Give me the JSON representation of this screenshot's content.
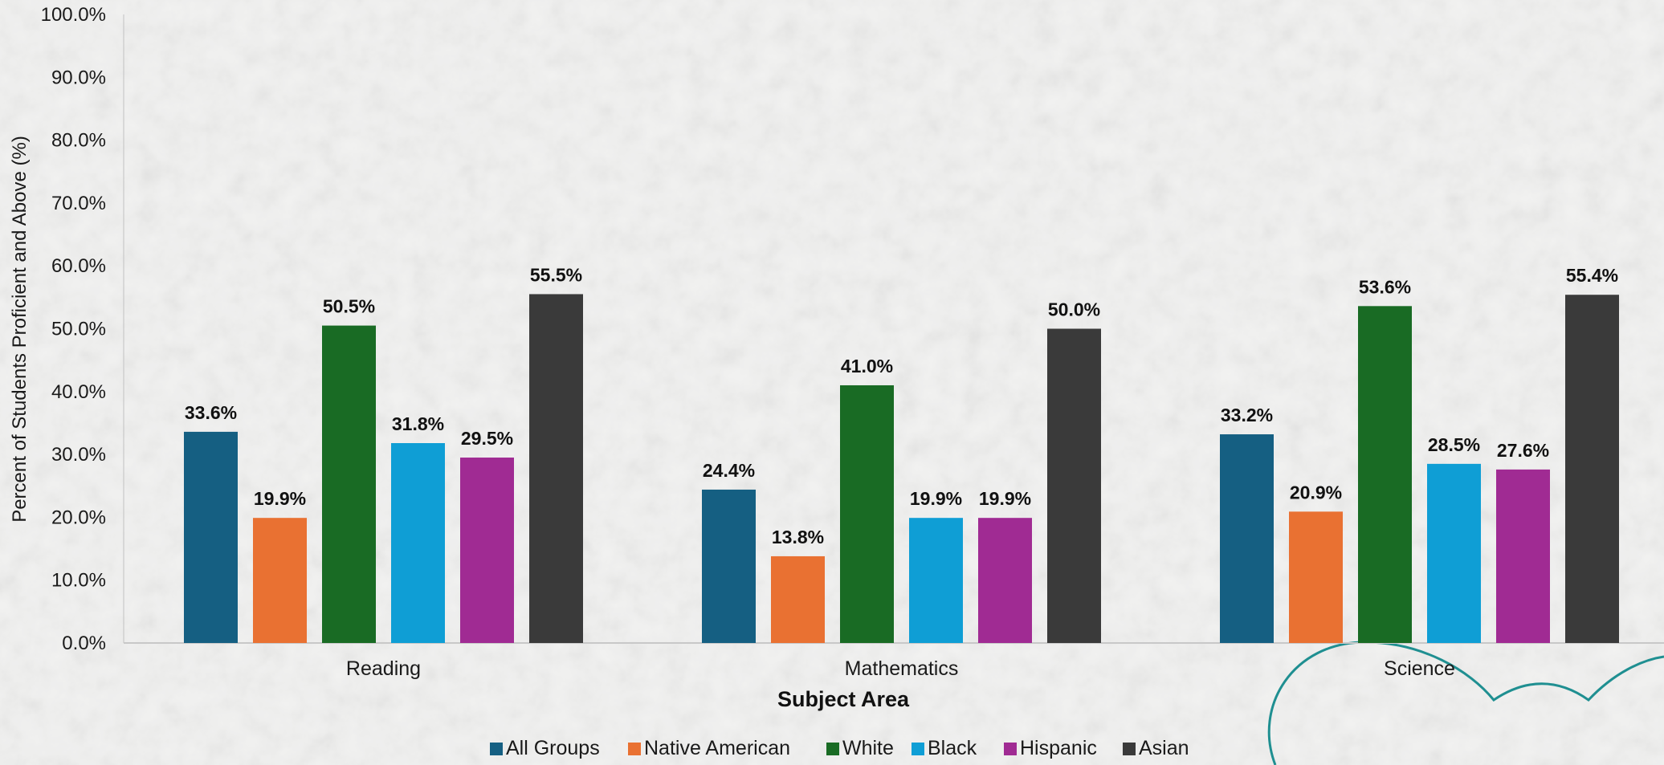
{
  "chart_data": {
    "type": "bar",
    "categories": [
      "Reading",
      "Mathematics",
      "Science"
    ],
    "series": [
      {
        "name": "All Groups",
        "color": "#155f82",
        "values": [
          33.6,
          24.4,
          33.2
        ]
      },
      {
        "name": "Native American",
        "color": "#e97132",
        "values": [
          19.9,
          13.8,
          20.9
        ]
      },
      {
        "name": "White",
        "color": "#196b24",
        "values": [
          50.5,
          41.0,
          53.6
        ]
      },
      {
        "name": "Black",
        "color": "#0f9ed5",
        "values": [
          31.8,
          19.9,
          28.5
        ]
      },
      {
        "name": "Hispanic",
        "color": "#a02b93",
        "values": [
          29.5,
          19.9,
          27.6
        ]
      },
      {
        "name": "Asian",
        "color": "#3a3a3a",
        "values": [
          55.5,
          50.0,
          55.4
        ]
      }
    ],
    "data_labels": [
      [
        "33.6%",
        "24.4%",
        "33.2%"
      ],
      [
        "19.9%",
        "13.8%",
        "20.9%"
      ],
      [
        "50.5%",
        "41.0%",
        "53.6%"
      ],
      [
        "31.8%",
        "19.9%",
        "28.5%"
      ],
      [
        "29.5%",
        "19.9%",
        "27.6%"
      ],
      [
        "55.5%",
        "50.0%",
        "55.4%"
      ]
    ],
    "y_ticks": [
      "0.0%",
      "10.0%",
      "20.0%",
      "30.0%",
      "40.0%",
      "50.0%",
      "60.0%",
      "70.0%",
      "80.0%",
      "90.0%",
      "100.0%"
    ],
    "ylim": [
      0,
      100
    ],
    "ylabel": "Percent of Students Proficient and Above (%)",
    "xlabel": "Subject Area",
    "legend_position": "bottom",
    "grid": false
  }
}
